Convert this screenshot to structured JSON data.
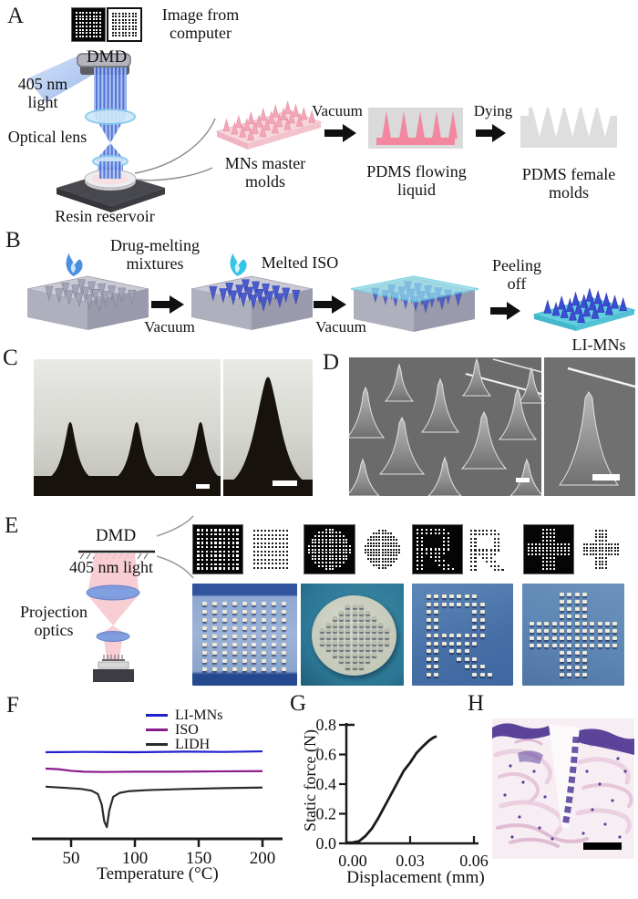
{
  "figure": {
    "panels": {
      "A": {
        "label": "A",
        "image_from_computer": "Image from computer",
        "dmd": "DMD",
        "light": "405 nm light",
        "optical_lens": "Optical lens",
        "resin_reservoir": "Resin reservoir",
        "mns_master_molds": "MNs master molds",
        "vacuum": "Vacuum",
        "pdms_flowing_liquid": "PDMS flowing liquid",
        "dying": "Dying",
        "pdms_female_molds": "PDMS female molds",
        "patterns": [
          {
            "name": "dmd-image-negative",
            "shape": "square",
            "scheme": "black"
          },
          {
            "name": "dmd-image-positive",
            "shape": "square",
            "scheme": "white"
          }
        ]
      },
      "B": {
        "label": "B",
        "drug_melting": "Drug-melting mixtures",
        "vacuum_1": "Vacuum",
        "melted_iso": "Melted ISO",
        "vacuum_2": "Vacuum",
        "peeling_off": "Peeling off",
        "li_mns": "LI-MNs"
      },
      "C": {
        "label": "C"
      },
      "D": {
        "label": "D"
      },
      "E": {
        "label": "E",
        "dmd": "DMD",
        "light": "405 nm light",
        "projection_optics": "Projection optics",
        "patterns": [
          {
            "name": "pattern-square-negative",
            "shape": "square",
            "scheme": "black"
          },
          {
            "name": "pattern-square-positive",
            "shape": "square",
            "scheme": "white"
          },
          {
            "name": "pattern-circle-negative",
            "shape": "circle",
            "scheme": "black"
          },
          {
            "name": "pattern-circle-positive",
            "shape": "circle",
            "scheme": "white"
          },
          {
            "name": "pattern-R-negative",
            "shape": "R",
            "scheme": "black"
          },
          {
            "name": "pattern-R-positive",
            "shape": "R",
            "scheme": "white"
          },
          {
            "name": "pattern-plus-negative",
            "shape": "plus",
            "scheme": "black"
          },
          {
            "name": "pattern-plus-positive",
            "shape": "plus",
            "scheme": "white"
          }
        ],
        "photos": [
          {
            "name": "photo-square-mn-array",
            "shape": "square"
          },
          {
            "name": "photo-disc-mn-array",
            "shape": "circle"
          },
          {
            "name": "photo-R-mn-array",
            "shape": "R"
          },
          {
            "name": "photo-plus-mn-array",
            "shape": "plus"
          }
        ]
      },
      "F": {
        "label": "F"
      },
      "G": {
        "label": "G"
      },
      "H": {
        "label": "H"
      }
    },
    "colors": {
      "beam_blue": "#4a74d4",
      "beam_pink": "#f6c6cc",
      "mold_pink": "#f2a6b8",
      "cone_blue": "#3c4ed0",
      "sheet_cyan": "#5ecede",
      "flame_blue": "#4a90e2",
      "flame_cyan": "#35c5e8"
    }
  },
  "chart_data": [
    {
      "id": "dsc-thermogram",
      "type": "line",
      "xlabel": "Temperature (°C)",
      "xticks": [
        {
          "label": "50",
          "value": 50
        },
        {
          "label": "100",
          "value": 100
        },
        {
          "label": "150",
          "value": 150
        },
        {
          "label": "200",
          "value": 200
        }
      ],
      "xrange": [
        30,
        203
      ],
      "legend_position": "top-right",
      "series": [
        {
          "name": "LI-MNs",
          "color": "#2121cc",
          "points": [
            [
              30,
              3.0
            ],
            [
              60,
              3.01
            ],
            [
              100,
              3.0
            ],
            [
              140,
              3.02
            ],
            [
              170,
              3.01
            ],
            [
              200,
              3.03
            ]
          ]
        },
        {
          "name": "ISO",
          "color": "#8b1b8b",
          "points": [
            [
              30,
              2.42
            ],
            [
              40,
              2.4
            ],
            [
              50,
              2.34
            ],
            [
              60,
              2.31
            ],
            [
              75,
              2.3
            ],
            [
              100,
              2.31
            ],
            [
              130,
              2.31
            ],
            [
              160,
              2.32
            ],
            [
              200,
              2.33
            ]
          ]
        },
        {
          "name": "LIDH",
          "color": "#2b2b2b",
          "points": [
            [
              30,
              1.78
            ],
            [
              45,
              1.74
            ],
            [
              58,
              1.7
            ],
            [
              66,
              1.64
            ],
            [
              71,
              1.52
            ],
            [
              74,
              1.15
            ],
            [
              76,
              0.55
            ],
            [
              78,
              0.35
            ],
            [
              80,
              0.95
            ],
            [
              83,
              1.42
            ],
            [
              88,
              1.56
            ],
            [
              95,
              1.62
            ],
            [
              110,
              1.66
            ],
            [
              140,
              1.7
            ],
            [
              170,
              1.73
            ],
            [
              200,
              1.75
            ]
          ]
        }
      ]
    },
    {
      "id": "static-force",
      "type": "line",
      "xlabel": "Displacement (mm)",
      "ylabel": "Static force (N)",
      "xticks": [
        {
          "label": "0.00",
          "value": 0
        },
        {
          "label": "0.03",
          "value": 0.03
        },
        {
          "label": "0.06",
          "value": 0.06
        }
      ],
      "yticks": [
        {
          "label": "0.0",
          "value": 0
        },
        {
          "label": "0.2",
          "value": 0.2
        },
        {
          "label": "0.4",
          "value": 0.4
        },
        {
          "label": "0.6",
          "value": 0.6
        },
        {
          "label": "0.8",
          "value": 0.8
        }
      ],
      "xrange": [
        0,
        0.06
      ],
      "yrange": [
        0,
        0.8
      ],
      "series": [
        {
          "name": "force-displacement-curve",
          "color": "#1a1a1a",
          "points": [
            [
              0,
              0.005
            ],
            [
              0.003,
              0.006
            ],
            [
              0.006,
              0.015
            ],
            [
              0.009,
              0.05
            ],
            [
              0.012,
              0.1
            ],
            [
              0.015,
              0.17
            ],
            [
              0.018,
              0.25
            ],
            [
              0.021,
              0.33
            ],
            [
              0.024,
              0.41
            ],
            [
              0.027,
              0.49
            ],
            [
              0.03,
              0.545
            ],
            [
              0.033,
              0.61
            ],
            [
              0.036,
              0.655
            ],
            [
              0.039,
              0.695
            ],
            [
              0.041,
              0.715
            ],
            [
              0.042,
              0.72
            ]
          ]
        }
      ]
    }
  ]
}
